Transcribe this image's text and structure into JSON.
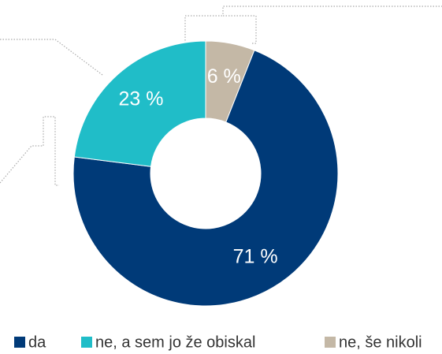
{
  "chart_data": {
    "type": "donut",
    "categories": [
      "da",
      "ne, a sem jo že obiskal",
      "ne, še nikoli"
    ],
    "values": [
      71,
      23,
      6
    ],
    "value_labels": [
      "71 %",
      "23 %",
      "6 %"
    ],
    "colors": [
      "#003a78",
      "#20bdc8",
      "#c4b8a6"
    ],
    "legend": "bottom"
  }
}
